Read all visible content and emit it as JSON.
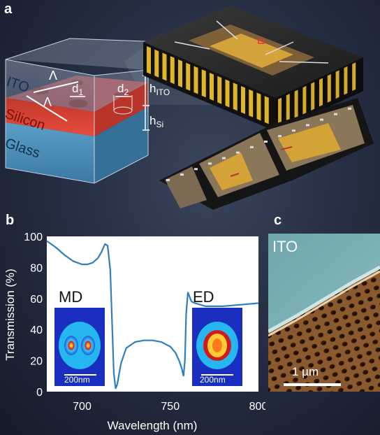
{
  "panels": {
    "a": "a",
    "b": "b",
    "c": "c"
  },
  "schematic": {
    "layers": [
      "ITO",
      "Silicon",
      "Glass"
    ],
    "period_symbol": "Λ",
    "dim_labels": {
      "d1": "d",
      "d1_sub": "1",
      "d2": "d",
      "d2_sub": "2",
      "h_ito": "h",
      "h_ito_sub": "ITO",
      "h_si": "h",
      "h_si_sub": "Si"
    }
  },
  "chart_data": {
    "type": "line",
    "xlabel": "Wavelength (nm)",
    "ylabel": "Transmission (%)",
    "xlim": [
      680,
      800
    ],
    "ylim": [
      0,
      100
    ],
    "xticks": [
      700,
      750,
      800
    ],
    "yticks": [
      0,
      20,
      40,
      60,
      80,
      100
    ],
    "x": [
      680,
      685,
      690,
      695,
      700,
      703,
      706,
      709,
      711,
      713,
      714.5,
      716,
      717,
      718,
      719,
      720,
      722,
      725,
      730,
      735,
      740,
      745,
      750,
      753,
      755,
      756.5,
      757.5,
      758.3,
      759,
      760,
      761,
      762,
      764,
      767,
      770,
      775,
      780,
      790,
      800
    ],
    "y": [
      97,
      93,
      88,
      84,
      82,
      82,
      83,
      86,
      90,
      95,
      94,
      78,
      45,
      12,
      2,
      5,
      18,
      28,
      32,
      33,
      33,
      32,
      29,
      25,
      20,
      15,
      10,
      20,
      50,
      64,
      61,
      58,
      57,
      56,
      55,
      55,
      55,
      56,
      57
    ],
    "annotations": [
      "MD",
      "ED"
    ],
    "inset_scale": "200nm"
  },
  "sem": {
    "label": "ITO",
    "scale": "1 µm"
  }
}
